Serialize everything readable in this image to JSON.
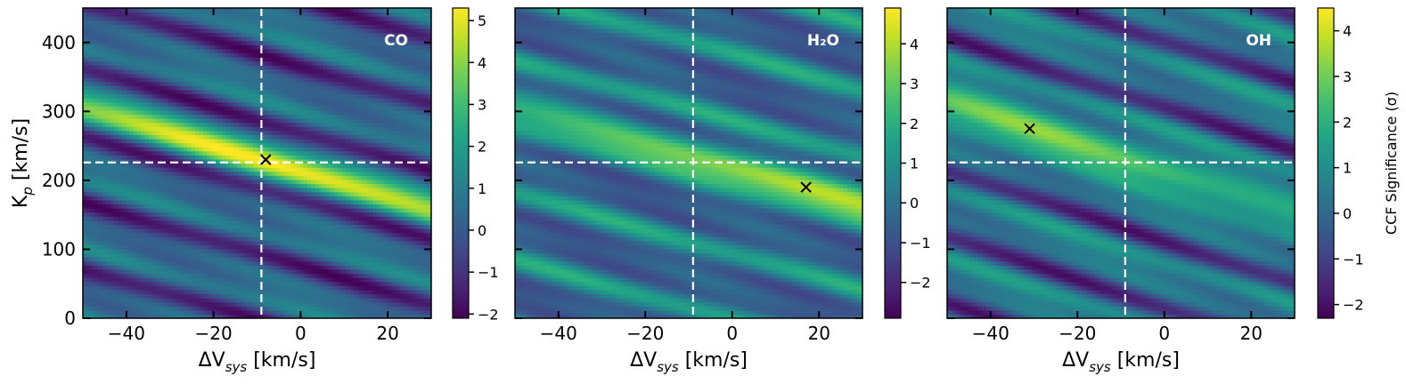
{
  "chart_data": [
    {
      "type": "heatmap",
      "species_label": "CO",
      "xlabel": {
        "main": "ΔV",
        "sub": "sys",
        "rest": " [km/s]"
      },
      "ylabel": {
        "main": "K",
        "sub": "p",
        "rest": " [km/s]"
      },
      "xlim": [
        -50,
        30
      ],
      "ylim": [
        0,
        450
      ],
      "x_ticks": [
        -40,
        -20,
        0,
        20
      ],
      "y_ticks": [
        0,
        100,
        200,
        300,
        400
      ],
      "reference_lines": {
        "x": -9,
        "y": 226
      },
      "peak": {
        "x": -8,
        "y": 230
      },
      "colormap": "viridis",
      "colorbar": {
        "min": -2.1,
        "max": 5.3,
        "ticks": [
          -2,
          -1,
          0,
          1,
          2,
          3,
          4,
          5
        ],
        "label": ""
      },
      "band": {
        "slope": -1.85,
        "strength": 5.0
      }
    },
    {
      "type": "heatmap",
      "species_label": "H₂O",
      "xlabel": {
        "main": "ΔV",
        "sub": "sys",
        "rest": " [km/s]"
      },
      "ylabel": null,
      "xlim": [
        -50,
        30
      ],
      "ylim": [
        0,
        450
      ],
      "x_ticks": [
        -40,
        -20,
        0,
        20
      ],
      "y_ticks": [],
      "reference_lines": {
        "x": -9,
        "y": 226
      },
      "peak": {
        "x": 17,
        "y": 190
      },
      "colormap": "viridis",
      "colorbar": {
        "min": -2.9,
        "max": 4.9,
        "ticks": [
          -2,
          -1,
          0,
          1,
          2,
          3,
          4
        ],
        "label": ""
      },
      "band": {
        "slope": -1.75,
        "strength": 4.5
      }
    },
    {
      "type": "heatmap",
      "species_label": "OH",
      "xlabel": {
        "main": "ΔV",
        "sub": "sys",
        "rest": " [km/s]"
      },
      "ylabel": null,
      "xlim": [
        -50,
        30
      ],
      "ylim": [
        0,
        450
      ],
      "x_ticks": [
        -40,
        -20,
        0,
        20
      ],
      "y_ticks": [],
      "reference_lines": {
        "x": -9,
        "y": 226
      },
      "peak": {
        "x": -31,
        "y": 275
      },
      "colormap": "viridis",
      "colorbar": {
        "min": -2.3,
        "max": 4.5,
        "ticks": [
          -2,
          -1,
          0,
          1,
          2,
          3,
          4
        ],
        "label": "CCF Significance (σ)"
      },
      "band": {
        "slope": -2.05,
        "strength": 4.2
      }
    }
  ]
}
